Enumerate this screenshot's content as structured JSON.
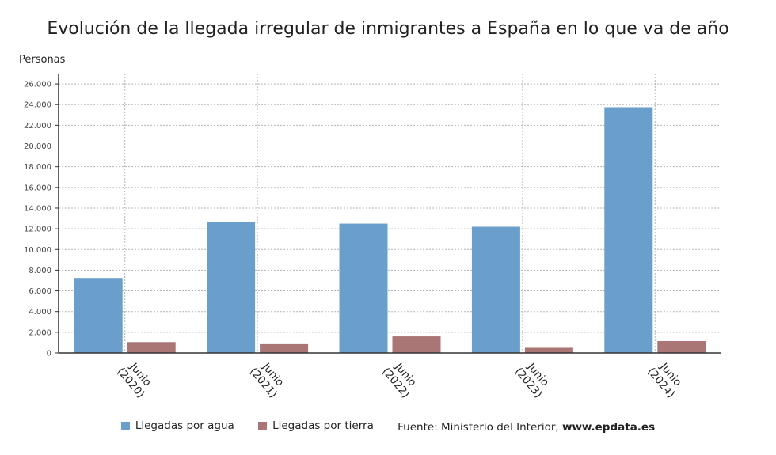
{
  "title": "Evolución de la llegada irregular de inmigrantes a España en lo que va de año",
  "legend": {
    "source_prefix": "Fuente: Ministerio del Interior, ",
    "source_site": "www.epdata.es"
  },
  "chart_data": {
    "type": "bar",
    "title": "Evolución de la llegada irregular de inmigrantes a España en lo que va de año",
    "xlabel": "",
    "ylabel": "Personas",
    "categories": [
      "Junio (2020)",
      "Junio (2021)",
      "Junio (2022)",
      "Junio (2023)",
      "Junio (2024)"
    ],
    "category_lines": [
      [
        "Junio",
        "(2020)"
      ],
      [
        "Junio",
        "(2021)"
      ],
      [
        "Junio",
        "(2022)"
      ],
      [
        "Junio",
        "(2023)"
      ],
      [
        "Junio",
        "(2024)"
      ]
    ],
    "series": [
      {
        "name": "Llegadas por agua",
        "color": "#6a9ecb",
        "values": [
          7250,
          12650,
          12500,
          12200,
          23750
        ]
      },
      {
        "name": "Llegadas por tierra",
        "color": "#a97575",
        "values": [
          1050,
          850,
          1600,
          500,
          1150
        ]
      }
    ],
    "ylim": [
      0,
      27000
    ],
    "yticks": [
      0,
      2000,
      4000,
      6000,
      8000,
      10000,
      12000,
      14000,
      16000,
      18000,
      20000,
      22000,
      24000,
      26000
    ],
    "ytick_labels": [
      "0",
      "2.000",
      "4.000",
      "6.000",
      "8.000",
      "10.000",
      "12.000",
      "14.000",
      "16.000",
      "18.000",
      "20.000",
      "22.000",
      "24.000",
      "26.000"
    ],
    "grid": true,
    "legend_position": "bottom"
  }
}
